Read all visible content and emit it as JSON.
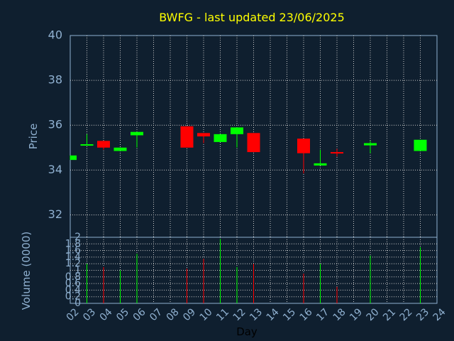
{
  "chart_data": {
    "type": "candlestick",
    "title": "BWFG - last updated 23/06/2025",
    "xlabel": "Day",
    "ylabel_price": "Price",
    "ylabel_volume": "Volume (0000)",
    "price_ylim": [
      31,
      40
    ],
    "price_ticks": [
      "32",
      "34",
      "36",
      "38",
      "40"
    ],
    "volume_ylim": [
      0,
      2
    ],
    "volume_ticks": [
      "0",
      "0.2",
      "0.4",
      "0.6",
      "0.8",
      "1",
      "1.2",
      "1.4",
      "1.6",
      "1.8",
      "2"
    ],
    "grid": true,
    "x_ticks": [
      "02",
      "03",
      "04",
      "05",
      "06",
      "07",
      "08",
      "09",
      "10",
      "11",
      "12",
      "13",
      "14",
      "15",
      "16",
      "17",
      "18",
      "19",
      "20",
      "21",
      "22",
      "23",
      "24"
    ],
    "candles": [
      {
        "day": "02",
        "open": 34.45,
        "close": 34.65,
        "high": 34.65,
        "low": 34.45,
        "volume": 0
      },
      {
        "day": "03",
        "open": 35.1,
        "close": 35.15,
        "high": 35.6,
        "low": 35.1,
        "volume": 1.2
      },
      {
        "day": "04",
        "open": 35.3,
        "close": 35.0,
        "high": 35.3,
        "low": 34.9,
        "volume": 1.1
      },
      {
        "day": "05",
        "open": 34.85,
        "close": 35.0,
        "high": 35.0,
        "low": 34.85,
        "volume": 1.0
      },
      {
        "day": "06",
        "open": 35.55,
        "close": 35.7,
        "high": 35.7,
        "low": 35.0,
        "volume": 1.5
      },
      {
        "day": "09",
        "open": 35.95,
        "close": 35.0,
        "high": 35.95,
        "low": 35.0,
        "volume": 1.05
      },
      {
        "day": "10",
        "open": 35.65,
        "close": 35.5,
        "high": 35.65,
        "low": 35.2,
        "volume": 1.35
      },
      {
        "day": "11",
        "open": 35.25,
        "close": 35.6,
        "high": 35.6,
        "low": 35.25,
        "volume": 1.95
      },
      {
        "day": "12",
        "open": 35.6,
        "close": 35.9,
        "high": 35.9,
        "low": 35.0,
        "volume": 1.1
      },
      {
        "day": "13",
        "open": 35.65,
        "close": 34.8,
        "high": 35.65,
        "low": 34.8,
        "volume": 1.2
      },
      {
        "day": "16",
        "open": 35.4,
        "close": 34.75,
        "high": 35.4,
        "low": 33.85,
        "volume": 0.9
      },
      {
        "day": "17",
        "open": 34.2,
        "close": 34.3,
        "high": 34.9,
        "low": 34.2,
        "volume": 1.2
      },
      {
        "day": "18",
        "open": 34.8,
        "close": 34.75,
        "high": 34.95,
        "low": 34.6,
        "volume": 0.5
      },
      {
        "day": "20",
        "open": 35.1,
        "close": 35.2,
        "high": 35.3,
        "low": 34.75,
        "volume": 1.45
      },
      {
        "day": "23",
        "open": 34.85,
        "close": 35.35,
        "high": 35.35,
        "low": 34.85,
        "volume": 1.7
      }
    ]
  },
  "colors": {
    "background": "#0f1f2f",
    "up": "#00ff00",
    "down": "#ff0000",
    "title": "#ffff00",
    "axis_text": "#8fb0d0",
    "frame": "#8fb0d0",
    "grid": "#c8c8c8"
  }
}
